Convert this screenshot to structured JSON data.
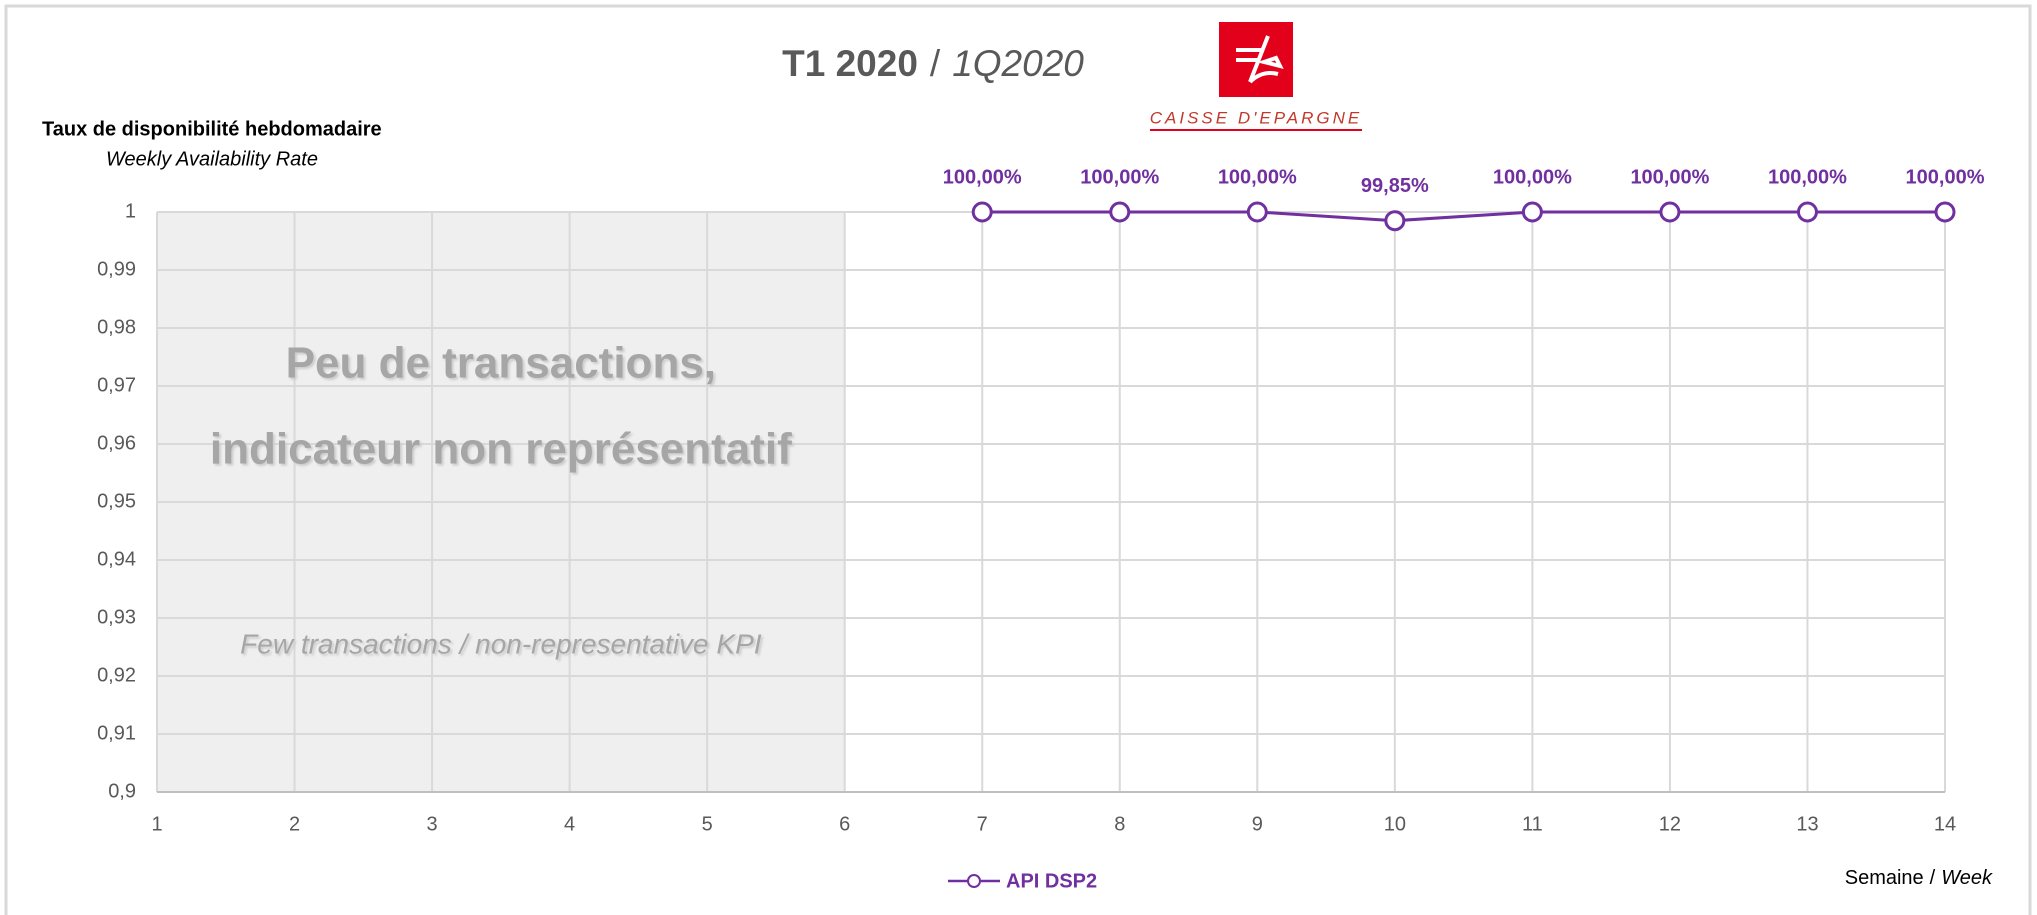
{
  "chart_data": {
    "type": "line",
    "title": "T1 2020",
    "title_separator": "/",
    "subtitle": "1Q2020",
    "brand": "CAISSE D'EPARGNE",
    "y_label": "Taux de disponibilité hebdomadaire",
    "y_label_en": "Weekly Availability Rate",
    "x_label": "Semaine",
    "x_label_separator": "/",
    "x_label_en": "Week",
    "annotation": [
      "Peu de transactions,",
      "indicateur non représentatif",
      "Few transactions / non-representative KPI"
    ],
    "shaded_xlim": [
      1,
      6
    ],
    "x": [
      7,
      8,
      9,
      10,
      11,
      12,
      13,
      14
    ],
    "series": [
      {
        "name": "API DSP2",
        "color": "#7030a0",
        "values": [
          1,
          1,
          1,
          0.9985,
          1,
          1,
          1,
          1
        ],
        "value_labels": [
          "100,00%",
          "100,00%",
          "100,00%",
          "99,85%",
          "100,00%",
          "100,00%",
          "100,00%",
          "100,00%"
        ]
      }
    ],
    "xlim": [
      1,
      14
    ],
    "xticks": [
      1,
      2,
      3,
      4,
      5,
      6,
      7,
      8,
      9,
      10,
      11,
      12,
      13,
      14
    ],
    "ylim": [
      0.9,
      1
    ],
    "yticks": [
      {
        "value": 0.9,
        "label": "0,9"
      },
      {
        "value": 0.91,
        "label": "0,91"
      },
      {
        "value": 0.92,
        "label": "0,92"
      },
      {
        "value": 0.93,
        "label": "0,93"
      },
      {
        "value": 0.94,
        "label": "0,94"
      },
      {
        "value": 0.95,
        "label": "0,95"
      },
      {
        "value": 0.96,
        "label": "0,96"
      },
      {
        "value": 0.97,
        "label": "0,97"
      },
      {
        "value": 0.98,
        "label": "0,98"
      },
      {
        "value": 0.99,
        "label": "0,99"
      },
      1
    ],
    "grid": true,
    "legend": "bottom"
  }
}
